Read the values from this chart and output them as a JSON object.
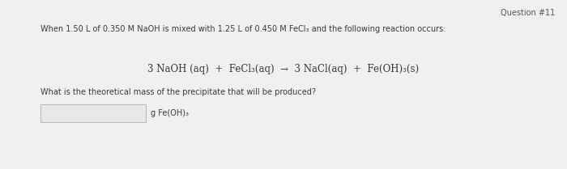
{
  "background_color": "#f0f0f0",
  "question_number": "Question #11",
  "intro_text": "When 1.50 L of 0.350 M NaOH is mixed with 1.25 L of 0.450 M FeCl₃ and the following reaction occurs:",
  "equation": "3 NaOH (aq)  +  FeCl₃(aq)  →  3 NaCl(aq)  +  Fe(OH)₃(s)",
  "question_text": "What is the theoretical mass of the precipitate that will be produced?",
  "answer_label": "g Fe(OH)₃",
  "text_color": "#3a3a3a",
  "box_fill_color": "#e8e8e8",
  "box_border_color": "#bbbbbb",
  "question_num_color": "#555555"
}
